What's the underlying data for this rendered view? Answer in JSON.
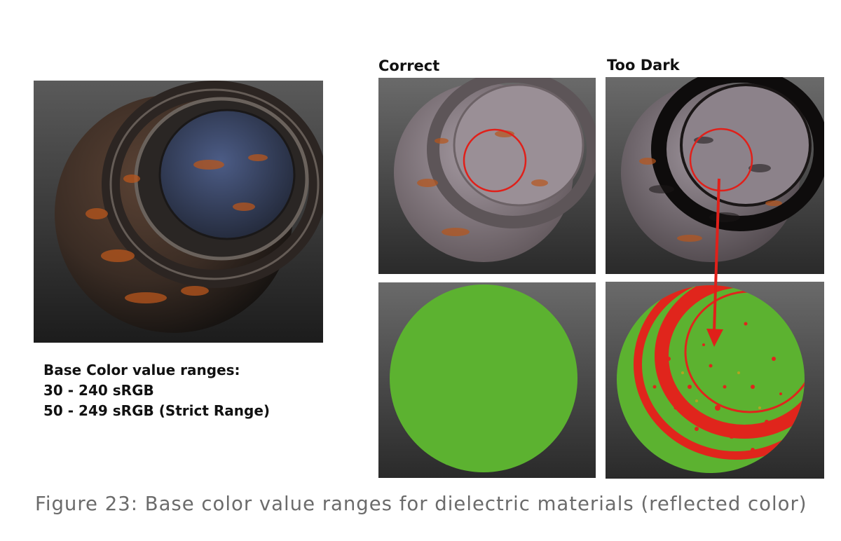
{
  "labels": {
    "correct": "Correct",
    "too_dark": "Too Dark"
  },
  "value_ranges": {
    "heading": "Base Color value ranges:",
    "lines": [
      "30 - 240 sRGB",
      "50 - 249 sRGB (Strict Range)"
    ]
  },
  "caption": "Figure 23: Base color value ranges for dielectric materials (reflected color)",
  "colors": {
    "valid_green": "#5cb230",
    "invalid_red": "#e0251c",
    "rust_orange": "#b8561c",
    "steel_blue": "#3e4f7c",
    "callout_red": "#e0201a"
  }
}
